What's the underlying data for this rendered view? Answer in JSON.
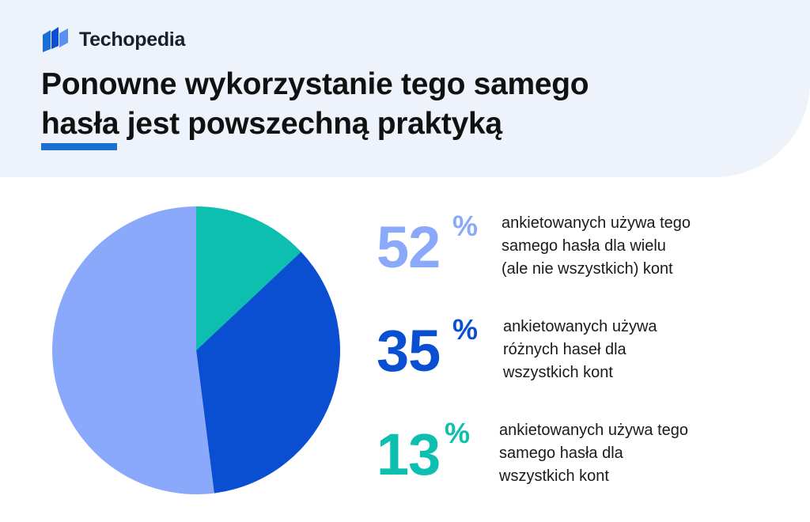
{
  "brand": {
    "name": "Techopedia"
  },
  "header": {
    "title_line1": "Ponowne wykorzystanie tego samego",
    "title_line2": "hasła jest powszechną praktyką"
  },
  "colors": {
    "header_bg": "#eef3fb",
    "accent": "#1a6fd6",
    "series1": "#8aa9fb",
    "series2": "#0a4fd2",
    "series3": "#0cbfae"
  },
  "stats": [
    {
      "value": "52",
      "unit": "%",
      "text": [
        "ankietowanych używa tego",
        "samego hasła dla wielu",
        "(ale nie wszystkich) kont"
      ]
    },
    {
      "value": "35",
      "unit": "%",
      "text": [
        "ankietowanych używa",
        "różnych haseł dla",
        "wszystkich kont"
      ]
    },
    {
      "value": "13",
      "unit": "%",
      "text": [
        "ankietowanych używa tego",
        "samego hasła dla",
        "wszystkich kont"
      ]
    }
  ],
  "chart_data": {
    "type": "pie",
    "title": "Ponowne wykorzystanie tego samego hasła jest powszechną praktyką",
    "categories": [
      "ankietowanych używa tego samego hasła dla wszystkich kont",
      "ankietowanych używa różnych haseł dla wszystkich kont",
      "ankietowanych używa tego samego hasła dla wielu (ale nie wszystkich) kont"
    ],
    "values": [
      13,
      35,
      52
    ],
    "colors": [
      "#0cbfae",
      "#0a4fd2",
      "#8aa9fb"
    ],
    "start_angle": "12 o'clock",
    "direction": "clockwise"
  }
}
